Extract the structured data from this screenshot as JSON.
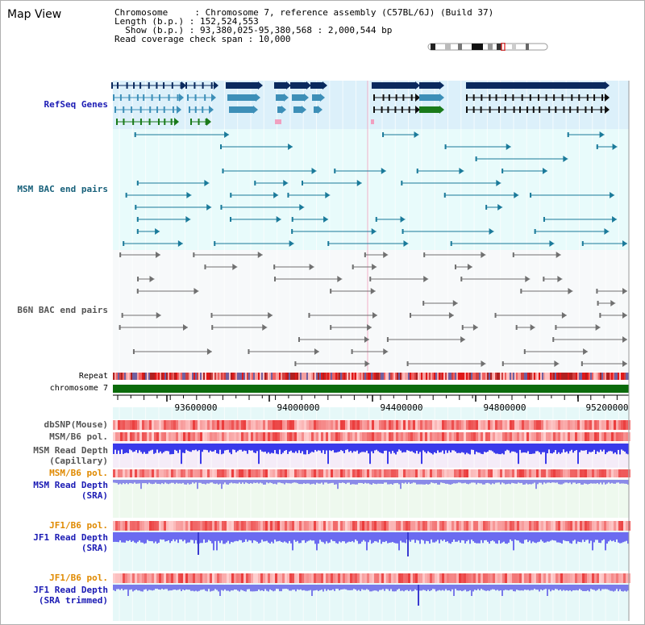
{
  "title": "Map View",
  "header": {
    "line1": "Chromosome     : Chromosome 7, reference assembly (C57BL/6J) (Build 37)",
    "line2": "Length (b.p.) : 152,524,553",
    "line3": "  Show (b.p.) : 93,380,025-95,380,568 : 2,000,544 bp",
    "line4": "Read coverage check span : 10,000"
  },
  "tracks": {
    "refseq": "RefSeq Genes",
    "msm_bac": "MSM BAC end pairs",
    "b6n_bac": "B6N BAC end pairs",
    "repeat": "Repeat",
    "chromosome": "chromosome 7",
    "dbsnp": "dbSNP(Mouse)",
    "msm_b6_pol_1": "MSM/B6 pol.",
    "msm_depth_cap_1": "MSM Read Depth",
    "msm_depth_cap_2": "(Capillary)",
    "msm_b6_pol_2": "MSM/B6 pol.",
    "msm_depth_sra_1": "MSM Read Depth",
    "msm_depth_sra_2": "(SRA)",
    "jf1_b6_pol_1": "JF1/B6 pol.",
    "jf1_depth_sra_1": "JF1 Read Depth",
    "jf1_depth_sra_2": "(SRA)",
    "jf1_b6_pol_2": "JF1/B6 pol.",
    "jf1_depth_trim_1": "JF1 Read Depth",
    "jf1_depth_trim_2": "(SRA trimmed)"
  },
  "ruler": {
    "ticks": [
      "93600000",
      "94000000",
      "94400000",
      "94800000",
      "95200000"
    ]
  },
  "colors": {
    "label_blue": "#1b1bb4",
    "label_teal": "#17607a",
    "label_gray": "#555555",
    "label_orange": "#e08a00",
    "navy": "#0a2a5e",
    "steel": "#3d8fb8",
    "green": "#1a7a1a",
    "chrom_green": "#0b6b0b"
  }
}
